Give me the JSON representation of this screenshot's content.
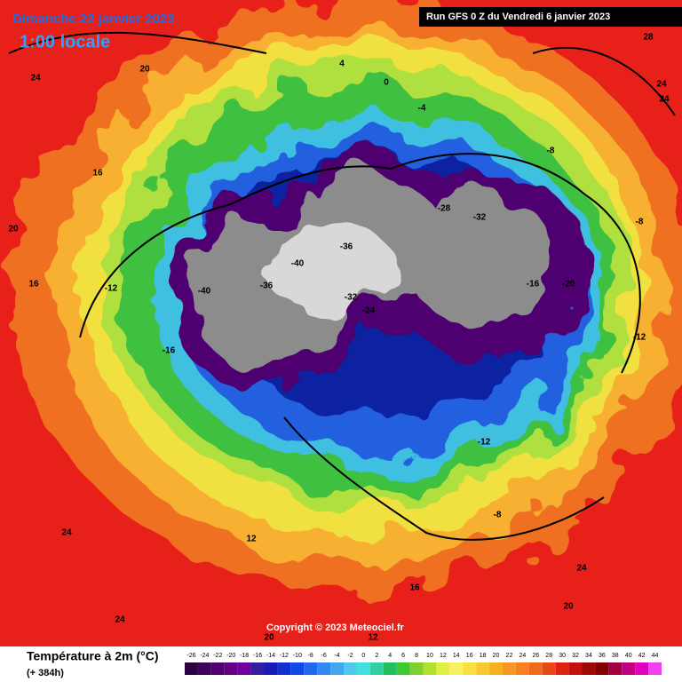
{
  "header": {
    "title": "Dimanche 22 janvier 2023",
    "subtitle": "1:00 locale",
    "run": "Run GFS 0 Z du Vendredi 6 janvier 2023"
  },
  "copyright": "Copyright © 2023 Meteociel.fr",
  "legend": {
    "title": "Température à 2m (°C)",
    "lead": "(+ 384h)",
    "ticks": [
      -26,
      -24,
      -22,
      -20,
      -18,
      -16,
      -14,
      -12,
      -10,
      -8,
      -6,
      -4,
      -2,
      0,
      2,
      4,
      6,
      8,
      10,
      12,
      14,
      16,
      18,
      20,
      22,
      24,
      26,
      28,
      30,
      32,
      34,
      36,
      38,
      40,
      42,
      44
    ],
    "colors": [
      "#2a0040",
      "#3c0058",
      "#500070",
      "#640088",
      "#7000a0",
      "#3020a0",
      "#1a1ab8",
      "#1030d0",
      "#1048e8",
      "#2068f0",
      "#3088f0",
      "#40a8f0",
      "#50c8f0",
      "#40e0e0",
      "#30d0a0",
      "#20c060",
      "#40c830",
      "#80d030",
      "#b0e030",
      "#e0f040",
      "#f8f060",
      "#f8e040",
      "#f8c830",
      "#f8b020",
      "#f89820",
      "#f88020",
      "#f06818",
      "#e84818",
      "#e02010",
      "#c01010",
      "#a00808",
      "#800000",
      "#a00040",
      "#c00080",
      "#e000c0",
      "#f040f0"
    ]
  },
  "map_labels": [
    "24",
    "20",
    "24",
    "28",
    "24",
    "16",
    "20",
    "16",
    "-12",
    "-16",
    "-40",
    "-36",
    "-40",
    "-36",
    "-32",
    "-24",
    "-28",
    "-32",
    "-16",
    "-20",
    "-8",
    "-12",
    "4",
    "0",
    "-4",
    "-8",
    "12",
    "16",
    "24",
    "20",
    "24",
    "12",
    "-12",
    "-8",
    "20",
    "24"
  ]
}
